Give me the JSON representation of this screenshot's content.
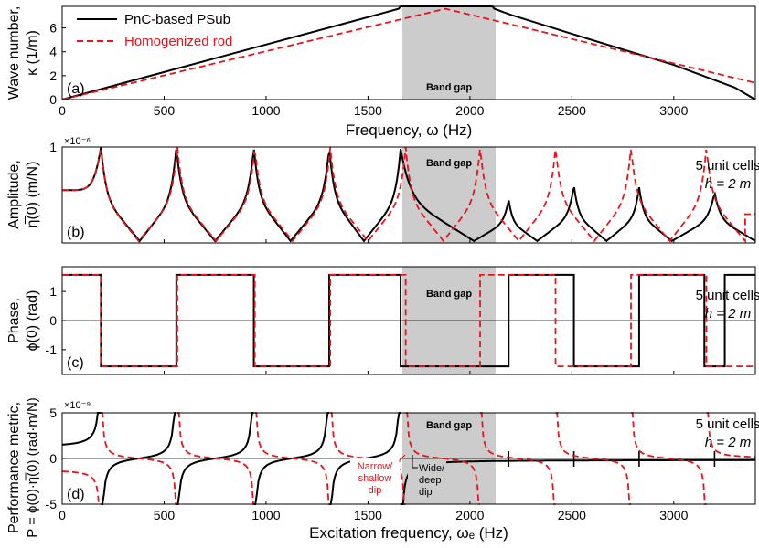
{
  "chart_data": [
    {
      "id": "a",
      "type": "line",
      "panel_label": "(a)",
      "xlabel": "Frequency, ω (Hz)",
      "ylabel": [
        "Wave number,",
        "κ (1/m)"
      ],
      "xlim": [
        0,
        3400
      ],
      "ylim": [
        0,
        7.8
      ],
      "xticks": [
        0,
        500,
        1000,
        1500,
        2000,
        2500,
        3000
      ],
      "yticks": [
        0,
        2,
        4,
        6
      ],
      "band_gap": [
        1660,
        2110
      ],
      "band_gap_label": "Band gap",
      "legend": {
        "placement": "top-left"
      },
      "series": [
        {
          "name": "PnC-based PSub",
          "style": "solid",
          "color": "#000000",
          "x": [
            0,
            500,
            1000,
            1500,
            1650,
            1660,
            2110,
            2120,
            2200,
            2500,
            3000,
            3300,
            3400
          ],
          "y": [
            0,
            2.3,
            4.6,
            6.9,
            7.6,
            7.8,
            7.8,
            7.6,
            7.1,
            5.5,
            2.9,
            1.0,
            0
          ]
        },
        {
          "name": "Homogenized rod",
          "style": "dashed",
          "color": "#e8141c",
          "x": [
            0,
            1880,
            3400
          ],
          "y": [
            0,
            7.6,
            1.4
          ]
        }
      ]
    },
    {
      "id": "b",
      "type": "line",
      "panel_label": "(b)",
      "ylabel": [
        "Amplitude,",
        "η̅(0) (m/N)"
      ],
      "exponent": "×10⁻⁶",
      "xlim": [
        0,
        3400
      ],
      "ylim": [
        0,
        1
      ],
      "ytick_labels": [
        "1"
      ],
      "band_gap": [
        1660,
        2110
      ],
      "band_gap_label": "Band gap",
      "annotation": [
        "5 unit cells",
        "h = 2 m"
      ],
      "series": [
        {
          "name": "PnC-based PSub",
          "style": "solid",
          "color": "#000000",
          "peaks": [
            190,
            560,
            940,
            1310,
            1660,
            2190,
            2510,
            2830,
            3200
          ],
          "dips": [
            380,
            750,
            1120,
            1480,
            2020,
            2330,
            2670,
            2990
          ],
          "peak_levels": [
            1.0,
            1.0,
            1.0,
            1.0,
            0.98,
            0.45,
            0.6,
            0.58,
            0.53
          ]
        },
        {
          "name": "Homogenized rod",
          "style": "dashed",
          "color": "#e8141c",
          "peaks": [
            190,
            565,
            945,
            1315,
            1685,
            2050,
            2420,
            2790,
            3160
          ],
          "dips": [
            375,
            755,
            1130,
            1500,
            1870,
            2240,
            2610,
            2980,
            3350
          ]
        }
      ]
    },
    {
      "id": "c",
      "type": "line",
      "panel_label": "(c)",
      "ylabel": [
        "Phase,",
        "ϕ(0) (rad)"
      ],
      "xlim": [
        0,
        3400
      ],
      "ylim": [
        -1.85,
        1.85
      ],
      "yticks": [
        -1,
        0,
        1
      ],
      "band_gap": [
        1660,
        2110
      ],
      "band_gap_label": "Band gap",
      "annotation": [
        "5 unit cells",
        "h = 2 m"
      ],
      "series": [
        {
          "name": "PnC-based PSub",
          "style": "solid",
          "color": "#000000",
          "intervals_down": [
            [
              190,
              560
            ],
            [
              940,
              1310
            ],
            [
              1660,
              2190
            ],
            [
              2510,
              2830
            ],
            [
              3150,
              3250
            ]
          ],
          "level": 1.571
        },
        {
          "name": "Homogenized rod",
          "style": "dashed",
          "color": "#e8141c",
          "intervals_down": [
            [
              190,
              565
            ],
            [
              945,
              1315
            ],
            [
              1685,
              2050
            ],
            [
              2420,
              2790
            ],
            [
              3160,
              3400
            ]
          ],
          "level": 1.571
        }
      ]
    },
    {
      "id": "d",
      "type": "line",
      "panel_label": "(d)",
      "xlabel": "Excitation frequency, ωₑ (Hz)",
      "ylabel": [
        "Performance metric,",
        "P = ϕ(0)·η̅(0) (rad·m/N)"
      ],
      "exponent": "×10⁻⁹",
      "xlim": [
        0,
        3400
      ],
      "ylim": [
        -5,
        5
      ],
      "xticks": [
        0,
        500,
        1000,
        1500,
        2000,
        2500,
        3000
      ],
      "yticks": [
        -5,
        0,
        5
      ],
      "band_gap": [
        1660,
        2110
      ],
      "band_gap_label": "Band gap",
      "annotation": [
        "5 unit cells",
        "h = 2 m"
      ],
      "notes": [
        {
          "text": [
            "Narrow/",
            "shallow",
            "dip"
          ],
          "color": "#e8141c"
        },
        {
          "text": [
            "Wide/",
            "deep",
            "dip"
          ],
          "color": "#000000"
        }
      ],
      "series": [
        {
          "name": "PnC-based PSub",
          "style": "solid",
          "color": "#000000",
          "poles": [
            190,
            560,
            940,
            1310,
            1660
          ],
          "small_spikes": [
            2190,
            2510,
            2830,
            3200
          ]
        },
        {
          "name": "Homogenized rod",
          "style": "dashed",
          "color": "#e8141c",
          "poles": [
            190,
            565,
            945,
            1315,
            1685,
            2050,
            2420,
            2790,
            3160
          ]
        }
      ]
    }
  ]
}
